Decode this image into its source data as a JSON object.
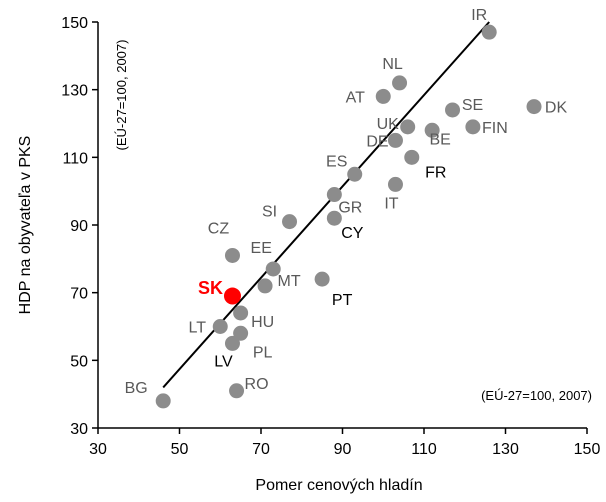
{
  "chart_data": {
    "type": "scatter",
    "xlabel": "Pomer cenových hladín",
    "ylabel": "HDP na obyvateľa v PKS",
    "yaxis_note": "(EÚ-27=100, 2007)",
    "xaxis_note": "(EÚ-27=100, 2007)",
    "xlim": [
      30,
      150
    ],
    "ylim": [
      30,
      150
    ],
    "x_ticks": [
      "30",
      "50",
      "70",
      "90",
      "110",
      "130",
      "150"
    ],
    "y_ticks": [
      "30",
      "50",
      "70",
      "90",
      "110",
      "130",
      "150"
    ],
    "grid": false,
    "trendline": {
      "x1": 46,
      "y1": 42,
      "x2": 126,
      "y2": 150
    },
    "point_color": "#8c8c8c",
    "highlight_color": "#ff0000",
    "points": [
      {
        "label": "IR",
        "x": 126,
        "y": 147
      },
      {
        "label": "NL",
        "x": 104,
        "y": 132
      },
      {
        "label": "AT",
        "x": 100,
        "y": 128
      },
      {
        "label": "SE",
        "x": 117,
        "y": 124
      },
      {
        "label": "DK",
        "x": 137,
        "y": 125
      },
      {
        "label": "UK",
        "x": 106,
        "y": 119
      },
      {
        "label": "FIN",
        "x": 122,
        "y": 119
      },
      {
        "label": "BE",
        "x": 112,
        "y": 118
      },
      {
        "label": "DE",
        "x": 103,
        "y": 115
      },
      {
        "label": "FR",
        "x": 107,
        "y": 110
      },
      {
        "label": "ES",
        "x": 93,
        "y": 105
      },
      {
        "label": "IT",
        "x": 103,
        "y": 102
      },
      {
        "label": "GR",
        "x": 88,
        "y": 99
      },
      {
        "label": "CY",
        "x": 88,
        "y": 92
      },
      {
        "label": "SI",
        "x": 77,
        "y": 91
      },
      {
        "label": "CZ",
        "x": 63,
        "y": 81
      },
      {
        "label": "EE",
        "x": 73,
        "y": 77
      },
      {
        "label": "MT",
        "x": 71,
        "y": 72
      },
      {
        "label": "PT",
        "x": 85,
        "y": 74
      },
      {
        "label": "SK",
        "x": 63,
        "y": 69,
        "highlight": true
      },
      {
        "label": "HU",
        "x": 65,
        "y": 64
      },
      {
        "label": "LT",
        "x": 60,
        "y": 60
      },
      {
        "label": "PL",
        "x": 65,
        "y": 58
      },
      {
        "label": "LV",
        "x": 63,
        "y": 55
      },
      {
        "label": "RO",
        "x": 64,
        "y": 41
      },
      {
        "label": "BG",
        "x": 46,
        "y": 38
      }
    ]
  }
}
